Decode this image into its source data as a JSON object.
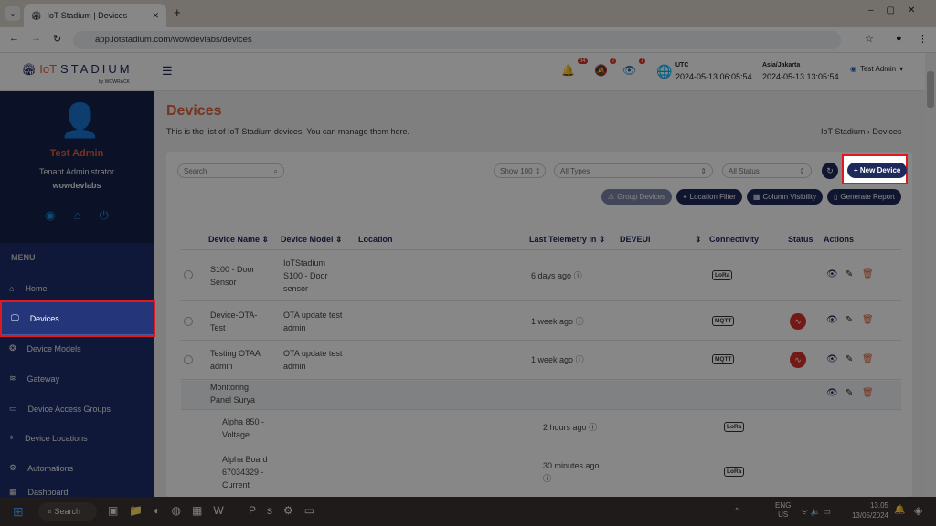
{
  "browser": {
    "tab_title": "IoT Stadium | Devices",
    "url": "app.iotstadium.com/wowdevlabs/devices"
  },
  "header": {
    "logo_prefix": "IoT",
    "logo_main": "STADIUM",
    "logo_by": "by WOWRACK",
    "notif_count": "34",
    "alert_count": "2",
    "watch_count": "1",
    "utc_label": "UTC",
    "utc_time": "2024-05-13 06:05:54",
    "tz_label": "Asia/Jakarta",
    "tz_time": "2024-05-13 13:05:54",
    "user": "Test Admin"
  },
  "sidebar": {
    "name": "Test Admin",
    "role": "Tenant Administrator",
    "tenant": "wowdevlabs",
    "menu_label": "MENU",
    "items": [
      {
        "label": "Home"
      },
      {
        "label": "Devices"
      },
      {
        "label": "Device Models"
      },
      {
        "label": "Gateway"
      },
      {
        "label": "Device Access Groups"
      },
      {
        "label": "Device Locations"
      },
      {
        "label": "Automations"
      },
      {
        "label": "Dashboard"
      }
    ]
  },
  "page": {
    "title": "Devices",
    "subtitle": "This is the list of IoT Stadium devices. You can manage them here.",
    "breadcrumb_root": "IoT Stadium",
    "breadcrumb_current": "Devices"
  },
  "toolbar": {
    "search_placeholder": "Search",
    "show": "Show 100",
    "types": "All Types",
    "status": "All Status",
    "new_device": "+ New Device",
    "group_devices": "Group Devices",
    "location_filter": "Location Filter",
    "column_visibility": "Column Visibility",
    "generate_report": "Generate Report"
  },
  "table": {
    "headers": [
      "Device Name",
      "Device Model",
      "Location",
      "Last Telemetry In",
      "DEVEUI",
      "Connectivity",
      "Status",
      "Actions"
    ],
    "rows": [
      {
        "name": "S100 - Door Sensor",
        "model": "IoTStadium S100 - Door sensor",
        "telemetry": "6 days ago",
        "connectivity": "LoRa",
        "status": ""
      },
      {
        "name": "Device-OTA-Test",
        "model": "OTA update test admin",
        "telemetry": "1 week ago",
        "connectivity": "MQTT",
        "status": "offline"
      },
      {
        "name": "Testing OTAA admin",
        "model": "OTA update test admin",
        "telemetry": "1 week ago",
        "connectivity": "MQTT",
        "status": "offline"
      },
      {
        "name": "Monitoring Panel Surya",
        "model": "",
        "telemetry": "",
        "connectivity": "",
        "status": ""
      },
      {
        "name": "Alpha 850 - Voltage",
        "model": "",
        "telemetry": "2 hours ago",
        "connectivity": "LoRa",
        "status": ""
      },
      {
        "name": "Alpha Board 67034329 - Current",
        "model": "",
        "telemetry": "30 minutes ago",
        "connectivity": "LoRa",
        "status": ""
      }
    ]
  },
  "taskbar": {
    "search": "Search",
    "lang1": "ENG",
    "lang2": "US",
    "time": "13.05",
    "date": "13/05/2024",
    "teams_badge": "9"
  },
  "colors": {
    "accent": "#e0603a",
    "navy": "#1f2a5c",
    "highlight": "#e0191f",
    "offline": "#d9312b"
  }
}
